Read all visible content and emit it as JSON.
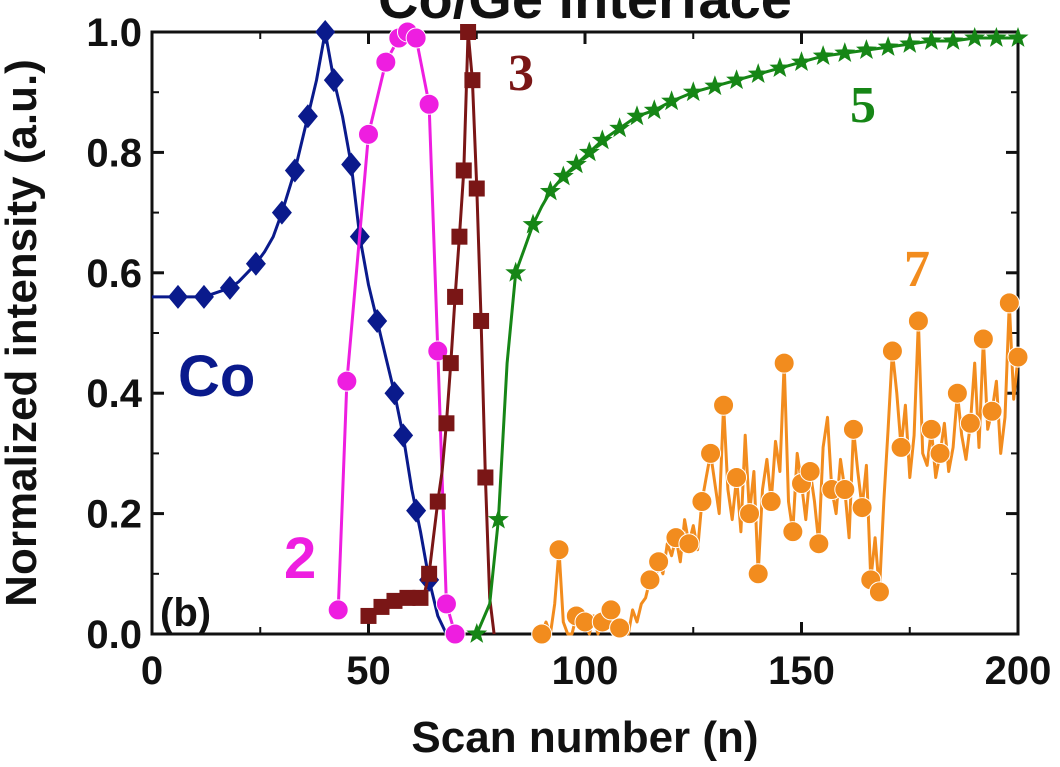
{
  "chart_data": {
    "type": "line",
    "title": "Co/Ge interface",
    "panel_label": "(b)",
    "xlabel": "Scan number (n)",
    "ylabel": "Normalized intensity (a.u.)",
    "xlim": [
      0,
      200
    ],
    "ylim": [
      0,
      1.0
    ],
    "x_ticks": [
      "0",
      "50",
      "100",
      "150",
      "200"
    ],
    "y_ticks": [
      "0.0",
      "0.2",
      "0.4",
      "0.6",
      "0.8",
      "1.0"
    ],
    "grid": false,
    "legend": "none (series labelled inline)",
    "series": [
      {
        "name": "Co",
        "color": "#0a1a8c",
        "marker": "diamond",
        "points": [
          [
            0,
            0.56
          ],
          [
            2,
            0.56
          ],
          [
            4,
            0.56
          ],
          [
            6,
            0.56
          ],
          [
            8,
            0.56
          ],
          [
            10,
            0.56
          ],
          [
            12,
            0.56
          ],
          [
            14,
            0.565
          ],
          [
            16,
            0.57
          ],
          [
            18,
            0.575
          ],
          [
            20,
            0.585
          ],
          [
            22,
            0.6
          ],
          [
            24,
            0.615
          ],
          [
            26,
            0.635
          ],
          [
            28,
            0.66
          ],
          [
            30,
            0.7
          ],
          [
            33,
            0.77
          ],
          [
            36,
            0.86
          ],
          [
            38,
            0.92
          ],
          [
            40,
            1.0
          ],
          [
            42,
            0.92
          ],
          [
            44,
            0.86
          ],
          [
            46,
            0.78
          ],
          [
            48,
            0.66
          ],
          [
            50,
            0.58
          ],
          [
            52,
            0.52
          ],
          [
            54,
            0.46
          ],
          [
            56,
            0.4
          ],
          [
            58,
            0.33
          ],
          [
            60,
            0.24
          ],
          [
            62,
            0.17
          ],
          [
            64,
            0.09
          ],
          [
            66,
            0.03
          ],
          [
            68,
            0.0
          ]
        ],
        "marker_x": [
          6,
          12,
          18,
          24,
          30,
          33,
          36,
          40,
          42,
          46,
          48,
          52,
          56,
          58,
          61,
          64
        ]
      },
      {
        "name": "2",
        "color": "#ee1ee0",
        "marker": "circle",
        "points": [
          [
            43,
            0.04
          ],
          [
            45,
            0.42
          ],
          [
            50,
            0.83
          ],
          [
            54,
            0.95
          ],
          [
            57,
            0.99
          ],
          [
            59,
            1.0
          ],
          [
            61,
            0.99
          ],
          [
            64,
            0.88
          ],
          [
            66,
            0.47
          ],
          [
            68,
            0.05
          ],
          [
            70,
            0.0
          ]
        ]
      },
      {
        "name": "3",
        "color": "#7a1616",
        "marker": "square",
        "points": [
          [
            50,
            0.03
          ],
          [
            52,
            0.04
          ],
          [
            54,
            0.05
          ],
          [
            56,
            0.055
          ],
          [
            58,
            0.06
          ],
          [
            60,
            0.06
          ],
          [
            62,
            0.06
          ],
          [
            63,
            0.07
          ],
          [
            64,
            0.1
          ],
          [
            65,
            0.16
          ],
          [
            66,
            0.22
          ],
          [
            67,
            0.27
          ],
          [
            68,
            0.35
          ],
          [
            69,
            0.45
          ],
          [
            70,
            0.56
          ],
          [
            71,
            0.66
          ],
          [
            72,
            0.77
          ],
          [
            73,
            1.0
          ],
          [
            74,
            0.92
          ],
          [
            75,
            0.74
          ],
          [
            76,
            0.52
          ],
          [
            77,
            0.26
          ],
          [
            78,
            0.06
          ],
          [
            79,
            0.0
          ]
        ],
        "marker_x": [
          50,
          53,
          56,
          59,
          62,
          64,
          66,
          68,
          69,
          70,
          71,
          72,
          73,
          74,
          75,
          76,
          77
        ]
      },
      {
        "name": "5",
        "color": "#168616",
        "marker": "star",
        "points": [
          [
            75,
            0.0
          ],
          [
            78,
            0.05
          ],
          [
            80,
            0.19
          ],
          [
            82,
            0.45
          ],
          [
            84,
            0.6
          ],
          [
            86,
            0.64
          ],
          [
            88,
            0.68
          ],
          [
            90,
            0.71
          ],
          [
            92,
            0.735
          ],
          [
            95,
            0.76
          ],
          [
            98,
            0.78
          ],
          [
            101,
            0.8
          ],
          [
            104,
            0.82
          ],
          [
            108,
            0.84
          ],
          [
            112,
            0.86
          ],
          [
            116,
            0.87
          ],
          [
            120,
            0.885
          ],
          [
            125,
            0.9
          ],
          [
            130,
            0.91
          ],
          [
            135,
            0.92
          ],
          [
            140,
            0.93
          ],
          [
            145,
            0.94
          ],
          [
            150,
            0.95
          ],
          [
            155,
            0.96
          ],
          [
            160,
            0.965
          ],
          [
            165,
            0.97
          ],
          [
            170,
            0.975
          ],
          [
            175,
            0.98
          ],
          [
            180,
            0.985
          ],
          [
            185,
            0.985
          ],
          [
            190,
            0.99
          ],
          [
            195,
            0.99
          ],
          [
            200,
            0.99
          ]
        ],
        "marker_x": [
          75,
          80,
          84,
          88,
          92,
          95,
          98,
          101,
          104,
          108,
          112,
          116,
          120,
          125,
          130,
          135,
          140,
          145,
          150,
          155,
          160,
          165,
          170,
          175,
          180,
          185,
          190,
          195,
          200
        ]
      },
      {
        "name": "7",
        "color": "#f28c1e",
        "marker": "circle",
        "points": [
          [
            90,
            0.0
          ],
          [
            91,
            0.02
          ],
          [
            92,
            0.0
          ],
          [
            93,
            0.05
          ],
          [
            94,
            0.14
          ],
          [
            95,
            0.02
          ],
          [
            96,
            0.0
          ],
          [
            97,
            0.0
          ],
          [
            98,
            0.03
          ],
          [
            99,
            0.01
          ],
          [
            100,
            0.02
          ],
          [
            101,
            0.0
          ],
          [
            102,
            0.03
          ],
          [
            103,
            0.0
          ],
          [
            104,
            0.02
          ],
          [
            105,
            0.03
          ],
          [
            106,
            0.04
          ],
          [
            107,
            0.0
          ],
          [
            108,
            0.01
          ],
          [
            109,
            0.02
          ],
          [
            110,
            0.0
          ],
          [
            111,
            0.04
          ],
          [
            112,
            0.02
          ],
          [
            113,
            0.05
          ],
          [
            114,
            0.06
          ],
          [
            115,
            0.09
          ],
          [
            116,
            0.08
          ],
          [
            117,
            0.12
          ],
          [
            118,
            0.1
          ],
          [
            119,
            0.15
          ],
          [
            120,
            0.13
          ],
          [
            121,
            0.16
          ],
          [
            122,
            0.12
          ],
          [
            123,
            0.19
          ],
          [
            124,
            0.15
          ],
          [
            125,
            0.18
          ],
          [
            126,
            0.14
          ],
          [
            127,
            0.22
          ],
          [
            128,
            0.26
          ],
          [
            129,
            0.3
          ],
          [
            130,
            0.25
          ],
          [
            131,
            0.2
          ],
          [
            132,
            0.38
          ],
          [
            133,
            0.24
          ],
          [
            134,
            0.19
          ],
          [
            135,
            0.26
          ],
          [
            136,
            0.17
          ],
          [
            137,
            0.33
          ],
          [
            138,
            0.2
          ],
          [
            139,
            0.27
          ],
          [
            140,
            0.1
          ],
          [
            141,
            0.24
          ],
          [
            142,
            0.29
          ],
          [
            143,
            0.22
          ],
          [
            144,
            0.32
          ],
          [
            145,
            0.27
          ],
          [
            146,
            0.45
          ],
          [
            147,
            0.22
          ],
          [
            148,
            0.17
          ],
          [
            149,
            0.3
          ],
          [
            150,
            0.25
          ],
          [
            151,
            0.19
          ],
          [
            152,
            0.27
          ],
          [
            153,
            0.22
          ],
          [
            154,
            0.15
          ],
          [
            155,
            0.31
          ],
          [
            156,
            0.36
          ],
          [
            157,
            0.24
          ],
          [
            158,
            0.2
          ],
          [
            159,
            0.29
          ],
          [
            160,
            0.24
          ],
          [
            161,
            0.16
          ],
          [
            162,
            0.34
          ],
          [
            163,
            0.27
          ],
          [
            164,
            0.21
          ],
          [
            165,
            0.28
          ],
          [
            166,
            0.09
          ],
          [
            167,
            0.16
          ],
          [
            168,
            0.07
          ],
          [
            169,
            0.22
          ],
          [
            170,
            0.34
          ],
          [
            171,
            0.47
          ],
          [
            172,
            0.4
          ],
          [
            173,
            0.31
          ],
          [
            174,
            0.38
          ],
          [
            175,
            0.26
          ],
          [
            176,
            0.33
          ],
          [
            177,
            0.52
          ],
          [
            178,
            0.3
          ],
          [
            179,
            0.28
          ],
          [
            180,
            0.34
          ],
          [
            181,
            0.26
          ],
          [
            182,
            0.3
          ],
          [
            183,
            0.35
          ],
          [
            184,
            0.27
          ],
          [
            185,
            0.31
          ],
          [
            186,
            0.4
          ],
          [
            187,
            0.33
          ],
          [
            188,
            0.29
          ],
          [
            189,
            0.35
          ],
          [
            190,
            0.45
          ],
          [
            191,
            0.31
          ],
          [
            192,
            0.49
          ],
          [
            193,
            0.34
          ],
          [
            194,
            0.37
          ],
          [
            195,
            0.42
          ],
          [
            196,
            0.3
          ],
          [
            197,
            0.36
          ],
          [
            198,
            0.55
          ],
          [
            199,
            0.39
          ],
          [
            200,
            0.46
          ]
        ],
        "marker_x": [
          90,
          94,
          98,
          100,
          104,
          106,
          108,
          115,
          117,
          121,
          124,
          127,
          129,
          132,
          135,
          138,
          140,
          143,
          146,
          148,
          150,
          152,
          154,
          157,
          160,
          162,
          164,
          166,
          168,
          171,
          173,
          177,
          180,
          182,
          186,
          189,
          192,
          194,
          198,
          200
        ]
      }
    ]
  }
}
